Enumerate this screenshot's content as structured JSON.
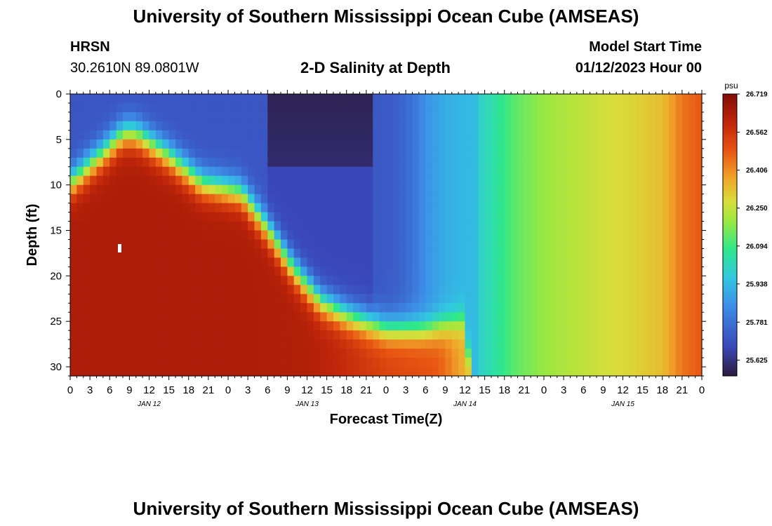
{
  "header": {
    "title": "University of Southern Mississippi Ocean Cube (AMSEAS)",
    "station_code": "HRSN",
    "coordinates": "30.2610N  89.0801W",
    "plot_title": "2-D Salinity at Depth",
    "model_start_label": "Model Start Time",
    "model_start_value": "01/12/2023 Hour 00"
  },
  "footer": {
    "title": "University of Southern Mississippi Ocean Cube (AMSEAS)"
  },
  "colors": {
    "palette": [
      "#2b1a3a",
      "#3a47b8",
      "#3d8fe8",
      "#31c8e0",
      "#2fe88a",
      "#9be840",
      "#d9dd3a",
      "#f0a52a",
      "#e85512",
      "#c0260a",
      "#7e0c06"
    ]
  },
  "chart_data": {
    "type": "heatmap",
    "title": "2-D Salinity at Depth",
    "xlabel": "Forecast Time(Z)",
    "ylabel": "Depth (ft)",
    "x_tick_labels": [
      "0",
      "3",
      "6",
      "9",
      "12",
      "15",
      "18",
      "21",
      "0",
      "3",
      "6",
      "9",
      "12",
      "15",
      "18",
      "21",
      "0",
      "3",
      "6",
      "9",
      "12",
      "15",
      "18",
      "21",
      "0",
      "3",
      "6",
      "9",
      "12",
      "15",
      "18",
      "21",
      "0"
    ],
    "x_range_hours": [
      0,
      96
    ],
    "date_labels": [
      {
        "label": "JAN 12",
        "hour": 12
      },
      {
        "label": "JAN 13",
        "hour": 36
      },
      {
        "label": "JAN 14",
        "hour": 60
      },
      {
        "label": "JAN 15",
        "hour": 84
      }
    ],
    "y_ticks": [
      0,
      5,
      10,
      15,
      20,
      25,
      30
    ],
    "ylim": [
      0,
      31
    ],
    "colorbar": {
      "unit": "psu",
      "min": 25.56,
      "max": 26.719,
      "tick_labels": [
        "26.719",
        "26.562",
        "26.406",
        "26.250",
        "26.094",
        "25.938",
        "25.781",
        "25.625"
      ],
      "tick_values": [
        26.719,
        26.562,
        26.406,
        26.25,
        26.094,
        25.938,
        25.781,
        25.625
      ]
    },
    "grid": false
  }
}
